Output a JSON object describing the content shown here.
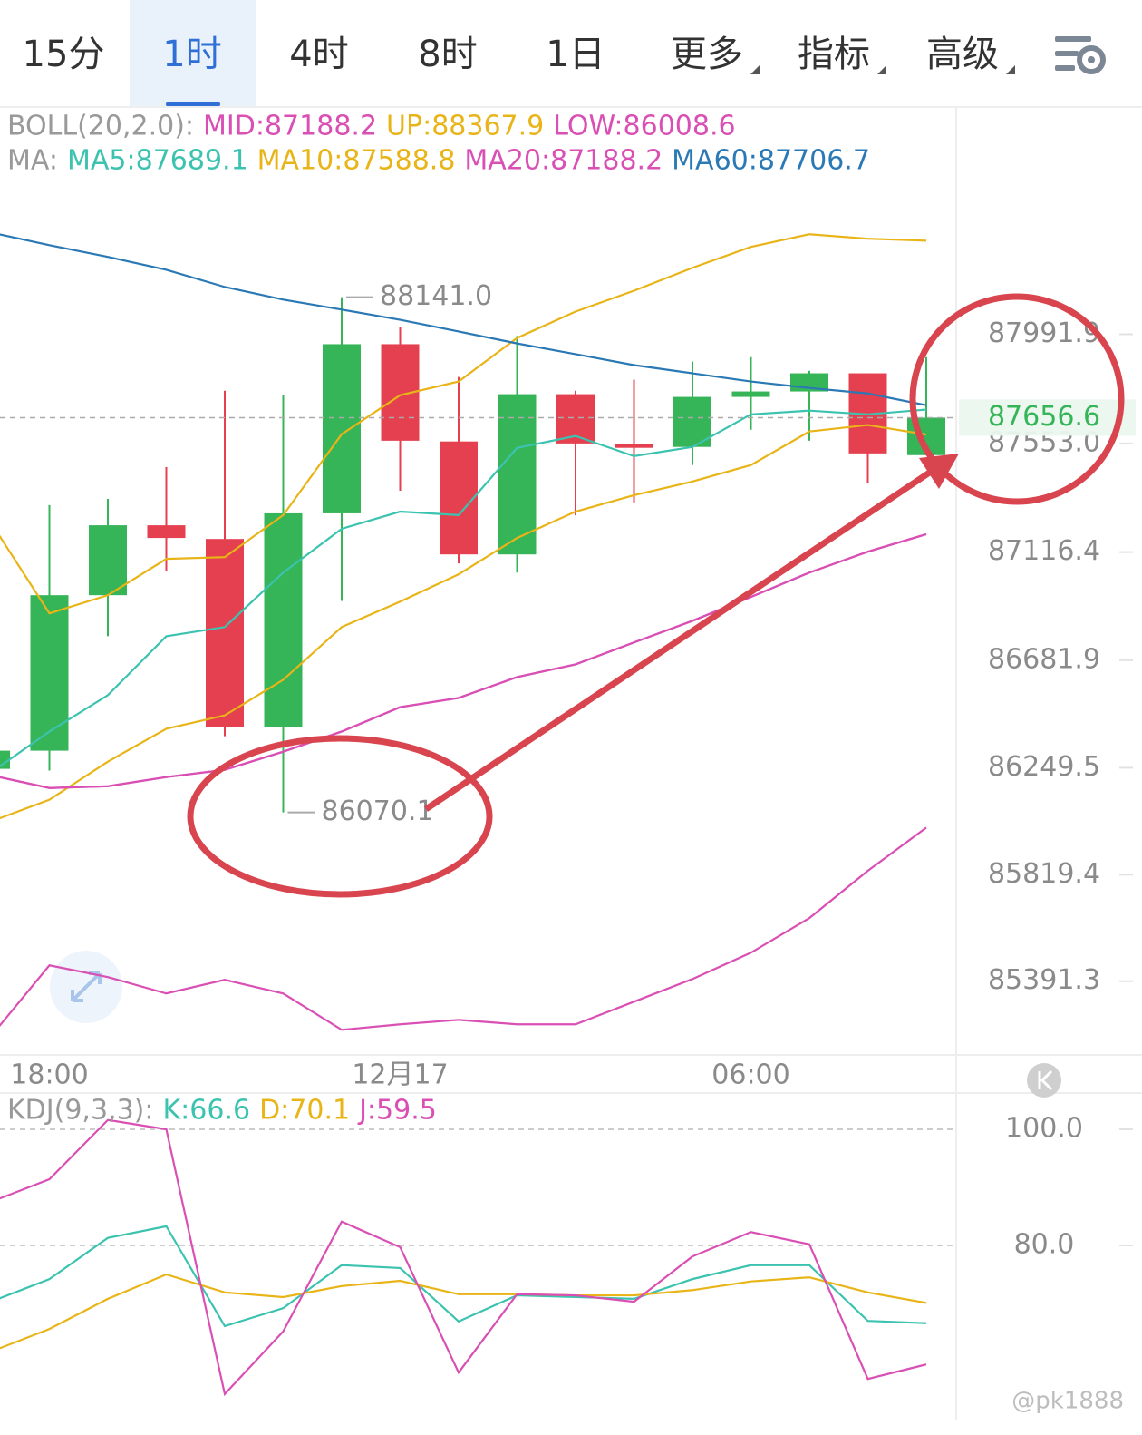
{
  "tabs": [
    "15分",
    "1时",
    "4时",
    "8时",
    "1日",
    "更多",
    "指标",
    "高级"
  ],
  "active_tab": 1,
  "chart_data": [
    {
      "type": "candlestick",
      "categories": [
        null,
        "18:00",
        null,
        null,
        null,
        null,
        null,
        "12月17",
        null,
        null,
        null,
        null,
        null,
        "06:00",
        null,
        null,
        null
      ],
      "open": [
        86245,
        86318,
        86943,
        87224,
        87169,
        86413,
        87272,
        87952,
        87561,
        87107,
        87751,
        87550,
        87539,
        87740,
        87762,
        87835,
        87506
      ],
      "high": [
        86330,
        87305,
        87330,
        87458,
        87765,
        87747,
        88141.0,
        88021,
        87820,
        87985,
        87765,
        87809,
        87882,
        87900,
        87845,
        87835,
        87900
      ],
      "low": [
        86235,
        86238,
        86778,
        87042,
        86376,
        86070.1,
        86920,
        87363,
        87071,
        87034,
        87264,
        87316,
        87466,
        87608,
        87564,
        87392,
        87506
      ],
      "close": [
        86318,
        86943,
        87224,
        87173,
        86413,
        87272,
        87952,
        87564,
        87107,
        87751,
        87553,
        87539,
        87740,
        87762,
        87835,
        87513,
        87656.6
      ],
      "up_color": "#35b557",
      "down_color": "#e5404f",
      "high_label": "88141.0",
      "low_label": "86070.1",
      "indicators": [
        {
          "label": "BOLL(20,2.0):",
          "series": [
            {
              "name": "MID:87188.2",
              "color": "#d94fb4",
              "values": [
                86219,
                86168,
                86175,
                86212,
                86241,
                86314,
                86395,
                86493,
                86530,
                86614,
                86665,
                86753,
                86840,
                86936,
                87034,
                87118,
                87188.2
              ]
            },
            {
              "name": "UP:88367.9",
              "color": "#e8b417",
              "values": [
                87235,
                86870,
                86943,
                87089,
                87096,
                87265,
                87590,
                87747,
                87802,
                87977,
                88083,
                88167,
                88259,
                88343,
                88394,
                88376,
                88367.9
              ]
            },
            {
              "name": "LOW:86008.6",
              "color": "#d94fb4",
              "values": [
                85170,
                85455,
                85408,
                85342,
                85397,
                85342,
                85196,
                85218,
                85236,
                85218,
                85218,
                85309,
                85400,
                85506,
                85645,
                85835,
                86008.6
              ]
            }
          ]
        },
        {
          "label": "MA:",
          "series": [
            {
              "name": "MA5:87689.1",
              "color": "#3cc3b0",
              "values": [
                86230,
                86395,
                86541,
                86778,
                86815,
                87034,
                87210,
                87279,
                87265,
                87535,
                87583,
                87502,
                87539,
                87670,
                87685,
                87670,
                87689.1
              ]
            },
            {
              "name": "MA10:87588.8",
              "color": "#e8b417",
              "values": [
                86033,
                86121,
                86274,
                86406,
                86460,
                86603,
                86815,
                86917,
                87027,
                87173,
                87279,
                87345,
                87400,
                87466,
                87601,
                87627,
                87588.8
              ]
            },
            {
              "name": "MA20:87188.2",
              "color": "#d94fb4",
              "values": [
                86219,
                86168,
                86175,
                86212,
                86241,
                86314,
                86395,
                86493,
                86530,
                86614,
                86665,
                86753,
                86840,
                86936,
                87034,
                87118,
                87188.2
              ]
            },
            {
              "name": "MA60:87706.7",
              "color": "#2a79b5",
              "values": [
                88401,
                88350,
                88303,
                88251,
                88182,
                88131,
                88091,
                88050,
                88003,
                87955,
                87912,
                87868,
                87835,
                87802,
                87776,
                87754,
                87706.7
              ]
            }
          ]
        }
      ],
      "last_price": 87656.6,
      "ylim": [
        85095,
        88898
      ],
      "yticks": [
        87991.9,
        {
          "value": 87553,
          "label": "87553.0"
        },
        87116.4,
        86681.9,
        86249.5,
        85819.4,
        85391.3
      ]
    },
    {
      "type": "line",
      "title": "KDJ(9,3,3):",
      "series": [
        {
          "name": "K:66.6",
          "color": "#3cc3b0",
          "values": [
            70.3,
            74.2,
            81.3,
            83.3,
            66.1,
            69.2,
            76.6,
            76.1,
            66.9,
            71.4,
            71.1,
            70.8,
            74.2,
            76.6,
            76.6,
            67.0,
            66.6
          ]
        },
        {
          "name": "D:70.1",
          "color": "#e8b417",
          "values": [
            61.7,
            65.6,
            70.8,
            75.0,
            71.9,
            71.1,
            73.0,
            73.9,
            71.6,
            71.6,
            71.4,
            71.4,
            72.3,
            73.8,
            74.5,
            71.9,
            70.1
          ]
        },
        {
          "name": "J:59.5",
          "color": "#d94fb4",
          "values": [
            87.5,
            91.4,
            101.6,
            100,
            54.4,
            65.2,
            84.1,
            79.7,
            58.1,
            71.6,
            71.4,
            70.3,
            78.1,
            82.3,
            80.2,
            57.0,
            59.5
          ]
        }
      ],
      "ylim": [
        50,
        106.25
      ],
      "yticks": [
        {
          "value": 100,
          "label": "100.0"
        },
        {
          "value": 80,
          "label": "80.0"
        }
      ]
    }
  ],
  "watermark": "@pk1888"
}
